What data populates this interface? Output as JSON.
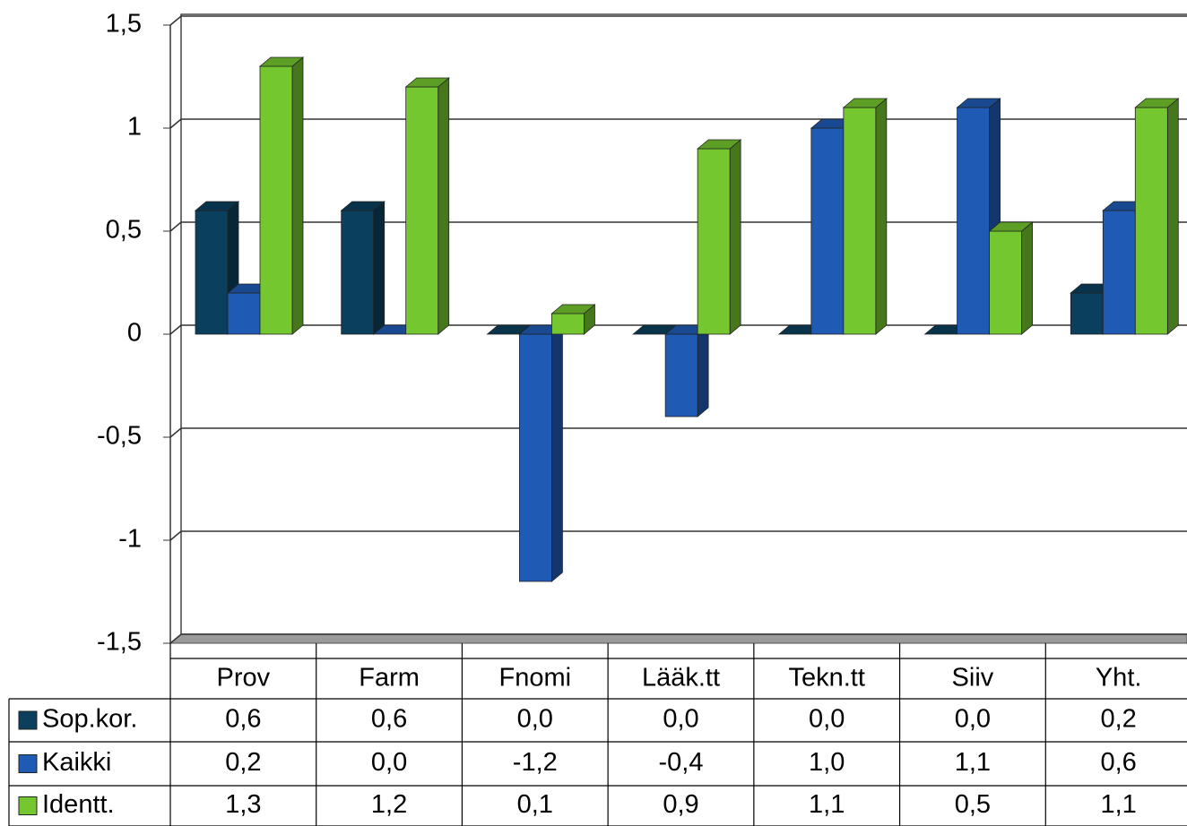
{
  "chart_data": {
    "type": "bar3d",
    "categories": [
      "Prov",
      "Farm",
      "Fnomi",
      "Lääk.tt",
      "Tekn.tt",
      "Siiv",
      "Yht."
    ],
    "series": [
      {
        "name": "Sop.kor.",
        "color": "#0b3f5e",
        "values": [
          0.6,
          0.6,
          0.0,
          0.0,
          0.0,
          0.0,
          0.2
        ],
        "value_labels": [
          "0,6",
          "0,6",
          "0,0",
          "0,0",
          "0,0",
          "0,0",
          "0,2"
        ]
      },
      {
        "name": "Kaikki",
        "color": "#1f5bb4",
        "values": [
          0.2,
          0.0,
          -1.2,
          -0.4,
          1.0,
          1.1,
          0.6
        ],
        "value_labels": [
          "0,2",
          "0,0",
          "-1,2",
          "-0,4",
          "1,0",
          "1,1",
          "0,6"
        ]
      },
      {
        "name": "Identt.",
        "color": "#74c72e",
        "values": [
          1.3,
          1.2,
          0.1,
          0.9,
          1.1,
          0.5,
          1.1
        ],
        "value_labels": [
          "1,3",
          "1,2",
          "0,1",
          "0,9",
          "1,1",
          "0,5",
          "1,1"
        ]
      }
    ],
    "ylim": [
      -1.5,
      1.5
    ],
    "yticks": [
      {
        "value": -1.5,
        "label": "-1,5"
      },
      -1,
      {
        "value": -0.5,
        "label": "-0,5"
      },
      0,
      {
        "value": 0.5,
        "label": "0,5"
      },
      1,
      {
        "value": 1.5,
        "label": "1,5"
      }
    ],
    "grid": true
  }
}
